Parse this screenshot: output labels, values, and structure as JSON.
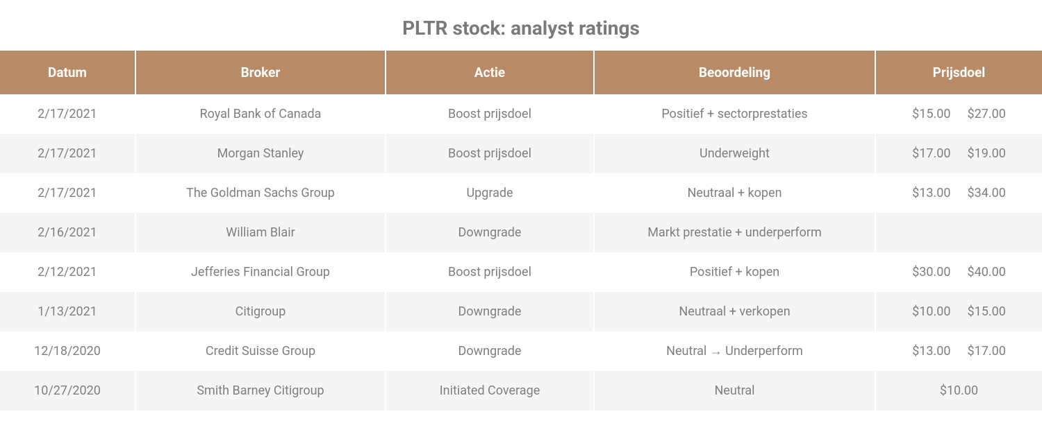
{
  "title": "PLTR stock: analyst ratings",
  "colors": {
    "header_bg": "#b88a65",
    "header_text": "#ffffff",
    "row_even_bg": "#f5f5f5",
    "row_odd_bg": "#ffffff",
    "cell_text": "#7f7f7f",
    "title_text": "#7a7a7a",
    "divider": "#ffffff"
  },
  "typography": {
    "title_fontsize": 28,
    "title_fontweight": 700,
    "header_fontsize": 19,
    "header_fontweight": 700,
    "cell_fontsize": 18
  },
  "table": {
    "columns": [
      {
        "key": "datum",
        "label": "Datum",
        "width_pct": 13
      },
      {
        "key": "broker",
        "label": "Broker",
        "width_pct": 24
      },
      {
        "key": "actie",
        "label": "Actie",
        "width_pct": 20
      },
      {
        "key": "beoordeling",
        "label": "Beoordeling",
        "width_pct": 27
      },
      {
        "key": "prijsdoel",
        "label": "Prijsdoel",
        "width_pct": 16
      }
    ],
    "rows": [
      {
        "datum": "2/17/2021",
        "broker": "Royal Bank of Canada",
        "actie": "Boost prijsdoel",
        "beoordeling": "Positief + sectorprestaties",
        "price_from": "$15.00",
        "price_to": "$27.00"
      },
      {
        "datum": "2/17/2021",
        "broker": "Morgan Stanley",
        "actie": "Boost prijsdoel",
        "beoordeling": "Underweight",
        "price_from": "$17.00",
        "price_to": "$19.00"
      },
      {
        "datum": "2/17/2021",
        "broker": "The Goldman Sachs Group",
        "actie": "Upgrade",
        "beoordeling": "Neutraal + kopen",
        "price_from": "$13.00",
        "price_to": "$34.00"
      },
      {
        "datum": "2/16/2021",
        "broker": "William Blair",
        "actie": "Downgrade",
        "beoordeling": "Markt prestatie + underperform",
        "price_from": "",
        "price_to": ""
      },
      {
        "datum": "2/12/2021",
        "broker": "Jefferies Financial Group",
        "actie": "Boost prijsdoel",
        "beoordeling": "Positief + kopen",
        "price_from": "$30.00",
        "price_to": "$40.00"
      },
      {
        "datum": "1/13/2021",
        "broker": "Citigroup",
        "actie": "Downgrade",
        "beoordeling": "Neutraal + verkopen",
        "price_from": "$10.00",
        "price_to": "$15.00"
      },
      {
        "datum": "12/18/2020",
        "broker": "Credit Suisse Group",
        "actie": "Downgrade",
        "beoordeling": "Neutral → Underperform",
        "price_from": "$13.00",
        "price_to": "$17.00"
      },
      {
        "datum": "10/27/2020",
        "broker": "Smith Barney Citigroup",
        "actie": "Initiated Coverage",
        "beoordeling": "Neutral",
        "price_from": "",
        "price_to": "$10.00"
      }
    ]
  }
}
